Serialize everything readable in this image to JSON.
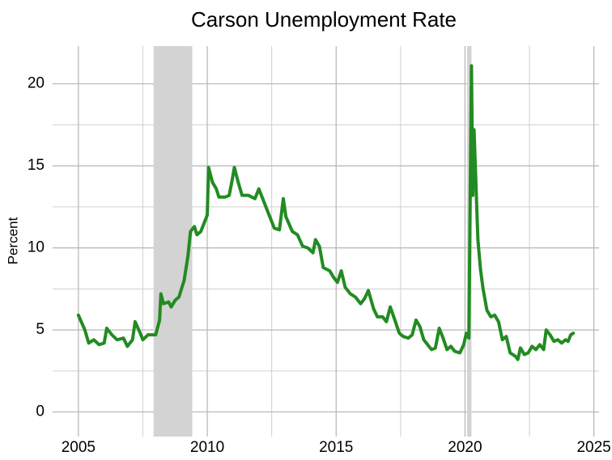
{
  "chart_data": {
    "type": "line",
    "title": "Carson Unemployment Rate",
    "y_label": "Percent",
    "color": "#228b22",
    "x": [
      2005.0,
      2005.25,
      2005.4,
      2005.6,
      2005.8,
      2006.0,
      2006.1,
      2006.3,
      2006.5,
      2006.75,
      2006.9,
      2007.1,
      2007.2,
      2007.4,
      2007.5,
      2007.7,
      2008.0,
      2008.15,
      2008.2,
      2008.3,
      2008.5,
      2008.6,
      2008.75,
      2008.9,
      2009.1,
      2009.25,
      2009.35,
      2009.5,
      2009.6,
      2009.75,
      2009.9,
      2010.0,
      2010.05,
      2010.2,
      2010.35,
      2010.45,
      2010.7,
      2010.85,
      2010.95,
      2011.05,
      2011.2,
      2011.35,
      2011.6,
      2011.85,
      2012.0,
      2012.2,
      2012.4,
      2012.6,
      2012.8,
      2012.95,
      2013.05,
      2013.3,
      2013.5,
      2013.7,
      2013.9,
      2014.1,
      2014.2,
      2014.35,
      2014.5,
      2014.75,
      2014.9,
      2015.05,
      2015.2,
      2015.35,
      2015.55,
      2015.75,
      2015.95,
      2016.1,
      2016.25,
      2016.45,
      2016.6,
      2016.8,
      2016.95,
      2017.1,
      2017.3,
      2017.45,
      2017.6,
      2017.8,
      2017.95,
      2018.1,
      2018.25,
      2018.4,
      2018.55,
      2018.7,
      2018.85,
      2019.0,
      2019.15,
      2019.3,
      2019.45,
      2019.6,
      2019.8,
      2019.95,
      2020.05,
      2020.15,
      2020.25,
      2020.3,
      2020.35,
      2020.5,
      2020.6,
      2020.7,
      2020.85,
      2021.0,
      2021.15,
      2021.3,
      2021.45,
      2021.6,
      2021.75,
      2021.95,
      2022.05,
      2022.15,
      2022.3,
      2022.45,
      2022.6,
      2022.75,
      2022.9,
      2023.05,
      2023.15,
      2023.3,
      2023.45,
      2023.6,
      2023.75,
      2023.9,
      2024.0,
      2024.1,
      2024.2
    ],
    "values": [
      5.9,
      5.0,
      4.2,
      4.4,
      4.1,
      4.2,
      5.1,
      4.7,
      4.4,
      4.5,
      4.0,
      4.4,
      5.5,
      4.8,
      4.4,
      4.7,
      4.7,
      5.6,
      7.2,
      6.6,
      6.7,
      6.4,
      6.8,
      7.0,
      8.0,
      9.5,
      11.0,
      11.3,
      10.8,
      11.0,
      11.6,
      12.0,
      14.9,
      14.0,
      13.6,
      13.1,
      13.1,
      13.2,
      14.0,
      14.9,
      14.0,
      13.2,
      13.2,
      13.0,
      13.6,
      12.8,
      12.0,
      11.2,
      11.1,
      13.0,
      11.9,
      11.0,
      10.8,
      10.1,
      10.0,
      9.7,
      10.5,
      10.1,
      8.8,
      8.6,
      8.2,
      7.9,
      8.6,
      7.6,
      7.2,
      7.0,
      6.6,
      6.9,
      7.4,
      6.3,
      5.8,
      5.8,
      5.5,
      6.4,
      5.5,
      4.8,
      4.6,
      4.5,
      4.7,
      5.6,
      5.2,
      4.4,
      4.1,
      3.8,
      3.9,
      5.1,
      4.5,
      3.8,
      4.0,
      3.7,
      3.6,
      4.1,
      4.8,
      4.5,
      21.1,
      13.2,
      17.2,
      10.5,
      8.7,
      7.5,
      6.2,
      5.8,
      5.9,
      5.5,
      4.4,
      4.6,
      3.6,
      3.4,
      3.2,
      3.9,
      3.5,
      3.6,
      4.0,
      3.8,
      4.1,
      3.8,
      5.0,
      4.7,
      4.3,
      4.4,
      4.2,
      4.4,
      4.3,
      4.7,
      4.8
    ],
    "shaded_regions": [
      [
        2007.917,
        2009.417
      ],
      [
        2020.083,
        2020.25
      ]
    ],
    "shade_color": "#d3d3d3",
    "xlim": [
      2004,
      2025.2
    ],
    "ylim": [
      -1.5,
      22.3
    ],
    "xticks": [
      2005,
      2010,
      2015,
      2020,
      2025
    ],
    "yticks": [
      0,
      5,
      10,
      15,
      20
    ],
    "grid": true
  }
}
